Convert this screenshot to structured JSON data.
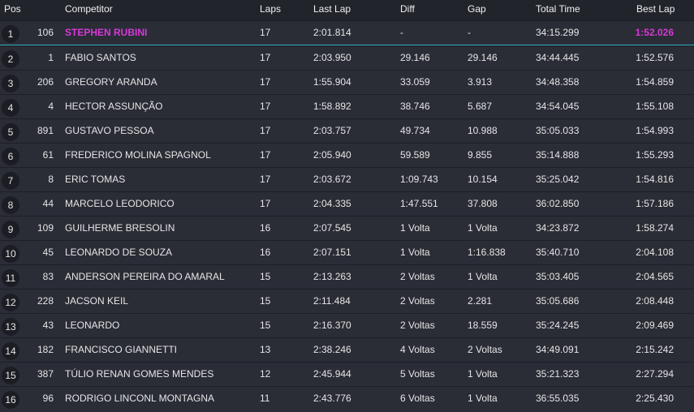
{
  "columns": {
    "pos": "Pos",
    "competitor": "Competitor",
    "laps": "Laps",
    "last_lap": "Last Lap",
    "diff": "Diff",
    "gap": "Gap",
    "total_time": "Total Time",
    "best_lap": "Best Lap"
  },
  "colors": {
    "highlight": "#d63ad6",
    "leader_line": "#2fb3c4",
    "background": "#2a2c36"
  },
  "rows": [
    {
      "pos": "1",
      "num": "106",
      "name": "STEPHEN RUBINI",
      "laps": "17",
      "last": "2:01.814",
      "diff": "-",
      "gap": "-",
      "total": "34:15.299",
      "best": "1:52.026"
    },
    {
      "pos": "2",
      "num": "1",
      "name": "FABIO SANTOS",
      "laps": "17",
      "last": "2:03.950",
      "diff": "29.146",
      "gap": "29.146",
      "total": "34:44.445",
      "best": "1:52.576"
    },
    {
      "pos": "3",
      "num": "206",
      "name": "GREGORY ARANDA",
      "laps": "17",
      "last": "1:55.904",
      "diff": "33.059",
      "gap": "3.913",
      "total": "34:48.358",
      "best": "1:54.859"
    },
    {
      "pos": "4",
      "num": "4",
      "name": "HECTOR ASSUNÇÃO",
      "laps": "17",
      "last": "1:58.892",
      "diff": "38.746",
      "gap": "5.687",
      "total": "34:54.045",
      "best": "1:55.108"
    },
    {
      "pos": "5",
      "num": "891",
      "name": "GUSTAVO PESSOA",
      "laps": "17",
      "last": "2:03.757",
      "diff": "49.734",
      "gap": "10.988",
      "total": "35:05.033",
      "best": "1:54.993"
    },
    {
      "pos": "6",
      "num": "61",
      "name": "FREDERICO MOLINA SPAGNOL",
      "laps": "17",
      "last": "2:05.940",
      "diff": "59.589",
      "gap": "9.855",
      "total": "35:14.888",
      "best": "1:55.293"
    },
    {
      "pos": "7",
      "num": "8",
      "name": "ERIC TOMAS",
      "laps": "17",
      "last": "2:03.672",
      "diff": "1:09.743",
      "gap": "10.154",
      "total": "35:25.042",
      "best": "1:54.816"
    },
    {
      "pos": "8",
      "num": "44",
      "name": "MARCELO LEODORICO",
      "laps": "17",
      "last": "2:04.335",
      "diff": "1:47.551",
      "gap": "37.808",
      "total": "36:02.850",
      "best": "1:57.186"
    },
    {
      "pos": "9",
      "num": "109",
      "name": "GUILHERME BRESOLIN",
      "laps": "16",
      "last": "2:07.545",
      "diff": "1 Volta",
      "gap": "1 Volta",
      "total": "34:23.872",
      "best": "1:58.274"
    },
    {
      "pos": "10",
      "num": "45",
      "name": "LEONARDO DE SOUZA",
      "laps": "16",
      "last": "2:07.151",
      "diff": "1 Volta",
      "gap": "1:16.838",
      "total": "35:40.710",
      "best": "2:04.108"
    },
    {
      "pos": "11",
      "num": "83",
      "name": "ANDERSON PEREIRA DO AMARAL",
      "laps": "15",
      "last": "2:13.263",
      "diff": "2 Voltas",
      "gap": "1 Volta",
      "total": "35:03.405",
      "best": "2:04.565"
    },
    {
      "pos": "12",
      "num": "228",
      "name": "JACSON KEIL",
      "laps": "15",
      "last": "2:11.484",
      "diff": "2 Voltas",
      "gap": "2.281",
      "total": "35:05.686",
      "best": "2:08.448"
    },
    {
      "pos": "13",
      "num": "43",
      "name": "LEONARDO",
      "laps": "15",
      "last": "2:16.370",
      "diff": "2 Voltas",
      "gap": "18.559",
      "total": "35:24.245",
      "best": "2:09.469"
    },
    {
      "pos": "14",
      "num": "182",
      "name": "FRANCISCO GIANNETTI",
      "laps": "13",
      "last": "2:38.246",
      "diff": "4 Voltas",
      "gap": "2 Voltas",
      "total": "34:49.091",
      "best": "2:15.242"
    },
    {
      "pos": "15",
      "num": "387",
      "name": "TÚLIO RENAN GOMES MENDES",
      "laps": "12",
      "last": "2:45.944",
      "diff": "5 Voltas",
      "gap": "1 Volta",
      "total": "35:21.323",
      "best": "2:27.294"
    },
    {
      "pos": "16",
      "num": "96",
      "name": "RODRIGO LINCONL MONTAGNA",
      "laps": "11",
      "last": "2:43.776",
      "diff": "6 Voltas",
      "gap": "1 Volta",
      "total": "36:55.035",
      "best": "2:25.430"
    }
  ]
}
